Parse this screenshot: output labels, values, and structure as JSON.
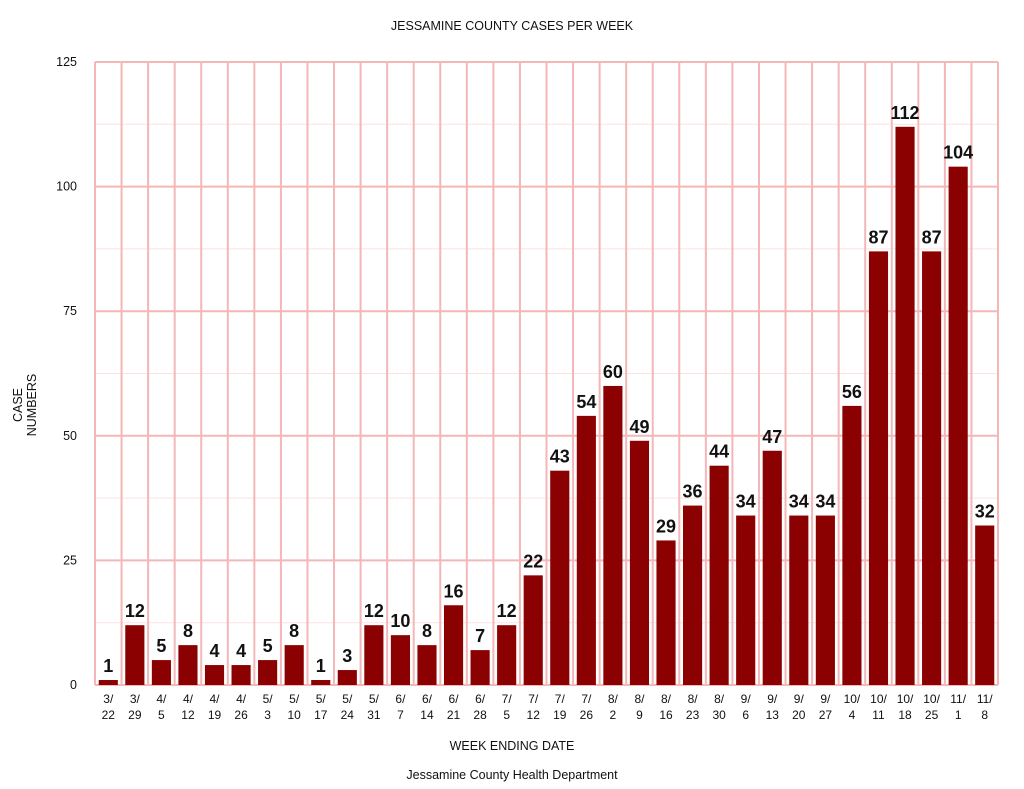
{
  "chart_data": {
    "type": "bar",
    "title": "JESSAMINE COUNTY CASES PER WEEK",
    "xlabel": "WEEK ENDING DATE",
    "ylabel": [
      "CASE",
      "NUMBERS"
    ],
    "source": "Jessamine County Health Department",
    "ylim": [
      0,
      125
    ],
    "yticks": [
      0,
      25,
      50,
      75,
      100,
      125
    ],
    "grid": true,
    "bar_color": "#8B0000",
    "grid_color": "#F4B6B6",
    "categories": [
      [
        "3/",
        "22"
      ],
      [
        "3/",
        "29"
      ],
      [
        "4/",
        "5"
      ],
      [
        "4/",
        "12"
      ],
      [
        "4/",
        "19"
      ],
      [
        "4/",
        "26"
      ],
      [
        "5/",
        "3"
      ],
      [
        "5/",
        "10"
      ],
      [
        "5/",
        "17"
      ],
      [
        "5/",
        "24"
      ],
      [
        "5/",
        "31"
      ],
      [
        "6/",
        "7"
      ],
      [
        "6/",
        "14"
      ],
      [
        "6/",
        "21"
      ],
      [
        "6/",
        "28"
      ],
      [
        "7/",
        "5"
      ],
      [
        "7/",
        "12"
      ],
      [
        "7/",
        "19"
      ],
      [
        "7/",
        "26"
      ],
      [
        "8/",
        "2"
      ],
      [
        "8/",
        "9"
      ],
      [
        "8/",
        "16"
      ],
      [
        "8/",
        "23"
      ],
      [
        "8/",
        "30"
      ],
      [
        "9/",
        "6"
      ],
      [
        "9/",
        "13"
      ],
      [
        "9/",
        "20"
      ],
      [
        "9/",
        "27"
      ],
      [
        "10/",
        "4"
      ],
      [
        "10/",
        "11"
      ],
      [
        "10/",
        "18"
      ],
      [
        "10/",
        "25"
      ],
      [
        "11/",
        "1"
      ],
      [
        "11/",
        "8"
      ]
    ],
    "values": [
      1,
      12,
      5,
      8,
      4,
      4,
      5,
      8,
      1,
      3,
      12,
      10,
      8,
      16,
      7,
      12,
      22,
      43,
      54,
      60,
      49,
      29,
      36,
      44,
      34,
      47,
      34,
      34,
      56,
      87,
      112,
      87,
      104,
      32
    ]
  }
}
